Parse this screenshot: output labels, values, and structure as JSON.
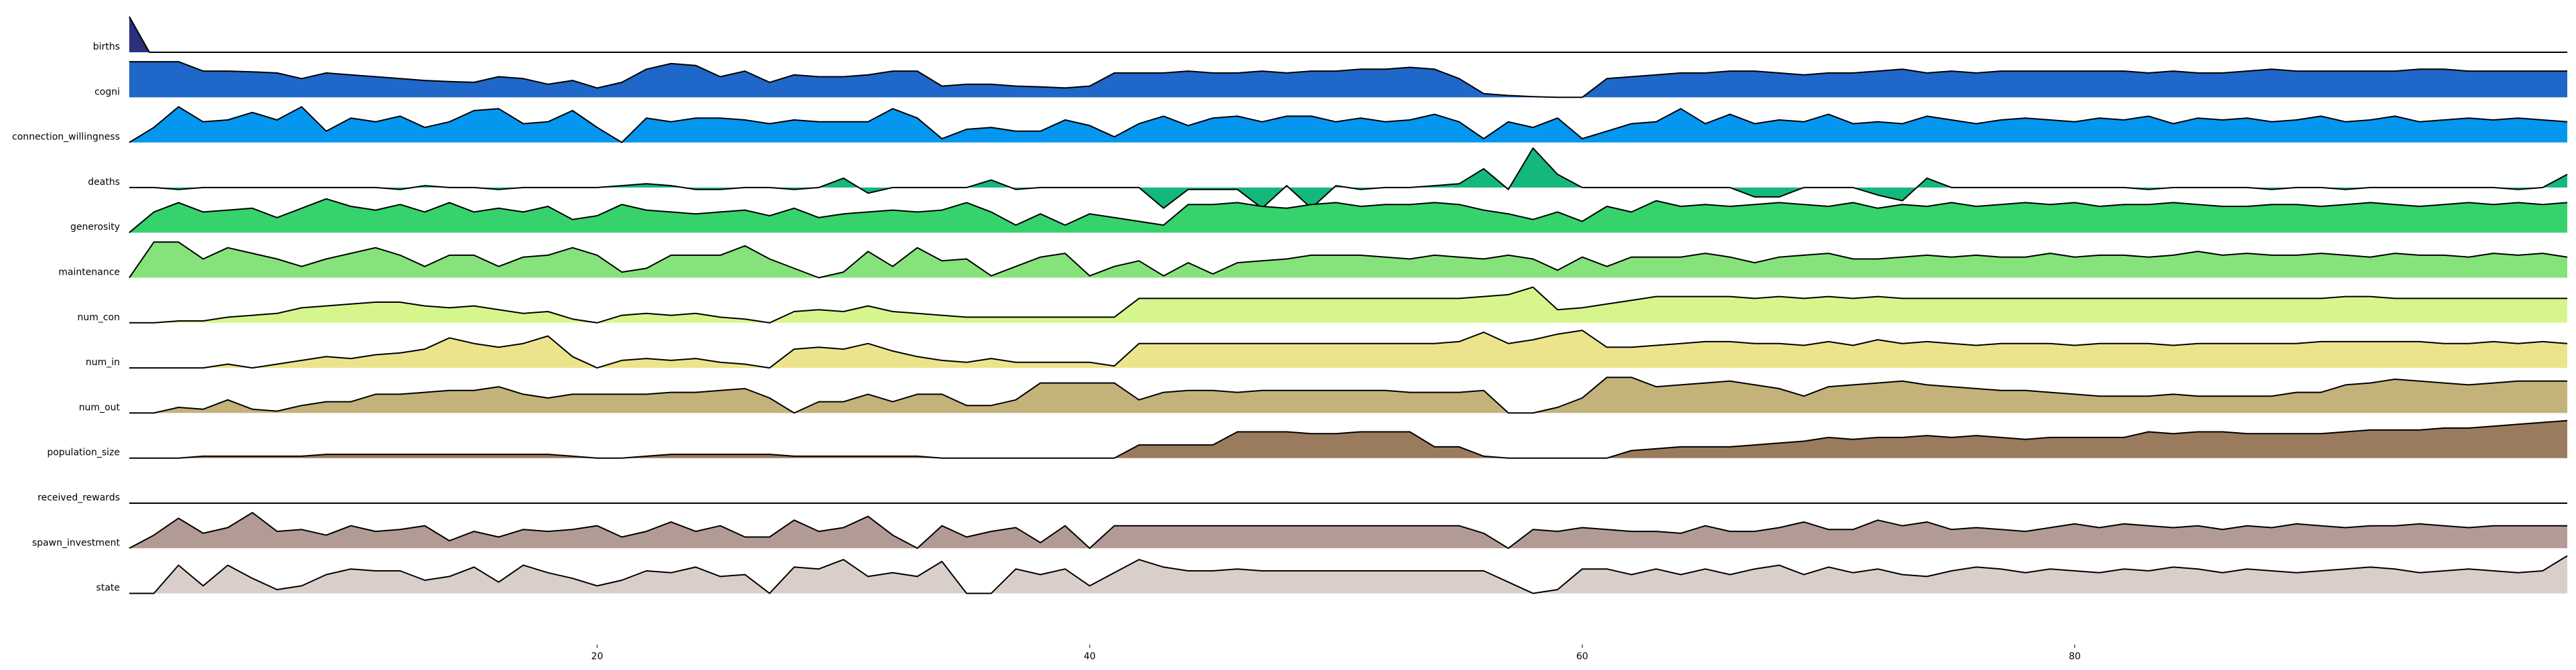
{
  "chart_data": {
    "type": "ridgeline",
    "x_start": 1,
    "x_end": 100,
    "xlim": [
      1,
      100
    ],
    "x_ticks": [
      20,
      40,
      60,
      80
    ],
    "x_tick_labels": [
      "20",
      "40",
      "60",
      "80"
    ],
    "grid": false,
    "legend": "none",
    "series": [
      {
        "name": "births",
        "color": "#2b2f7e",
        "values": [
          1,
          0
        ]
      },
      {
        "name": "cogni",
        "color": "#1f67c8",
        "values": [
          0.95,
          0.95,
          0.95,
          0.7,
          0.7,
          0.68,
          0.65,
          0.5,
          0.65,
          0.6,
          0.55,
          0.5,
          0.45,
          0.42,
          0.4,
          0.55,
          0.5,
          0.35,
          0.45,
          0.25,
          0.4,
          0.75,
          0.9,
          0.85,
          0.55,
          0.7,
          0.4,
          0.6,
          0.55,
          0.55,
          0.6,
          0.7,
          0.7,
          0.3,
          0.35,
          0.35,
          0.3,
          0.28,
          0.25,
          0.3,
          0.65,
          0.65,
          0.65,
          0.7,
          0.65,
          0.65,
          0.7,
          0.65,
          0.7,
          0.7,
          0.75,
          0.75,
          0.8,
          0.75,
          0.5,
          0.1,
          0.05,
          0.02,
          0.0,
          0.0,
          0.5,
          0.55,
          0.6,
          0.65,
          0.65,
          0.7,
          0.7,
          0.65,
          0.6,
          0.65,
          0.65,
          0.7,
          0.75,
          0.65,
          0.7,
          0.65,
          0.7,
          0.7,
          0.7,
          0.7,
          0.7,
          0.7,
          0.65,
          0.7,
          0.65,
          0.65,
          0.7,
          0.75,
          0.7,
          0.7,
          0.7,
          0.7,
          0.7,
          0.75,
          0.75,
          0.7,
          0.7,
          0.7,
          0.7,
          0.7
        ]
      },
      {
        "name": "connection_willingness",
        "color": "#0596f0",
        "values": [
          0.0,
          0.4,
          0.95,
          0.55,
          0.6,
          0.8,
          0.6,
          0.95,
          0.3,
          0.65,
          0.55,
          0.7,
          0.4,
          0.55,
          0.85,
          0.9,
          0.5,
          0.55,
          0.85,
          0.4,
          0.0,
          0.65,
          0.55,
          0.65,
          0.65,
          0.6,
          0.5,
          0.6,
          0.55,
          0.55,
          0.55,
          0.9,
          0.65,
          0.1,
          0.35,
          0.4,
          0.3,
          0.3,
          0.6,
          0.45,
          0.15,
          0.5,
          0.7,
          0.45,
          0.65,
          0.7,
          0.55,
          0.7,
          0.7,
          0.55,
          0.65,
          0.55,
          0.6,
          0.75,
          0.55,
          0.1,
          0.55,
          0.4,
          0.65,
          0.1,
          0.3,
          0.5,
          0.55,
          0.9,
          0.5,
          0.75,
          0.5,
          0.6,
          0.55,
          0.75,
          0.5,
          0.55,
          0.5,
          0.7,
          0.6,
          0.5,
          0.6,
          0.65,
          0.6,
          0.55,
          0.65,
          0.6,
          0.7,
          0.5,
          0.65,
          0.6,
          0.65,
          0.55,
          0.6,
          0.7,
          0.55,
          0.6,
          0.7,
          0.55,
          0.6,
          0.65,
          0.6,
          0.65,
          0.6,
          0.55
        ]
      },
      {
        "name": "deaths",
        "color": "#14b87b",
        "values": [
          0.0,
          0.0,
          -0.05,
          0.0,
          0.0,
          0.0,
          0.0,
          0.0,
          0.0,
          0.0,
          0.0,
          -0.05,
          0.05,
          0.0,
          0.0,
          -0.05,
          0.0,
          0.0,
          0.0,
          0.0,
          0.05,
          0.1,
          0.05,
          -0.05,
          -0.05,
          0.0,
          0.0,
          -0.05,
          0.0,
          0.25,
          -0.15,
          0.0,
          0.0,
          0.0,
          0.0,
          0.2,
          -0.05,
          0.0,
          0.0,
          0.0,
          0.0,
          0.0,
          -0.55,
          -0.05,
          -0.05,
          -0.05,
          -0.55,
          0.05,
          -0.55,
          0.05,
          -0.05,
          0.0,
          0.0,
          0.05,
          0.1,
          0.5,
          -0.05,
          1.05,
          0.35,
          0.0,
          0.0,
          0.0,
          0.0,
          0.0,
          0.0,
          0.0,
          -0.25,
          -0.25,
          0.0,
          0.0,
          0.0,
          -0.2,
          -0.35,
          0.25,
          0.0,
          0.0,
          0.0,
          0.0,
          0.0,
          0.0,
          0.0,
          0.0,
          -0.05,
          0.0,
          0.0,
          0.0,
          0.0,
          -0.05,
          0.0,
          0.0,
          -0.05,
          0.0,
          0.0,
          0.0,
          0.0,
          0.0,
          0.0,
          -0.05,
          0.0,
          0.35
        ]
      },
      {
        "name": "generosity",
        "color": "#36d26c",
        "values": [
          0.0,
          0.55,
          0.8,
          0.55,
          0.6,
          0.65,
          0.4,
          0.65,
          0.9,
          0.7,
          0.6,
          0.75,
          0.55,
          0.8,
          0.55,
          0.65,
          0.55,
          0.7,
          0.35,
          0.45,
          0.75,
          0.6,
          0.55,
          0.5,
          0.55,
          0.6,
          0.45,
          0.65,
          0.4,
          0.5,
          0.55,
          0.6,
          0.55,
          0.6,
          0.8,
          0.55,
          0.2,
          0.5,
          0.2,
          0.5,
          0.4,
          0.3,
          0.2,
          0.75,
          0.75,
          0.8,
          0.7,
          0.65,
          0.75,
          0.8,
          0.7,
          0.75,
          0.75,
          0.8,
          0.75,
          0.6,
          0.5,
          0.35,
          0.55,
          0.3,
          0.7,
          0.55,
          0.85,
          0.7,
          0.75,
          0.7,
          0.75,
          0.8,
          0.75,
          0.7,
          0.8,
          0.65,
          0.75,
          0.7,
          0.8,
          0.7,
          0.75,
          0.8,
          0.75,
          0.8,
          0.7,
          0.75,
          0.75,
          0.8,
          0.75,
          0.7,
          0.7,
          0.75,
          0.75,
          0.7,
          0.75,
          0.8,
          0.75,
          0.7,
          0.75,
          0.8,
          0.75,
          0.8,
          0.75,
          0.8
        ]
      },
      {
        "name": "maintenance",
        "color": "#86e37b",
        "values": [
          0.0,
          0.95,
          0.95,
          0.5,
          0.8,
          0.65,
          0.5,
          0.3,
          0.5,
          0.65,
          0.8,
          0.6,
          0.3,
          0.6,
          0.6,
          0.3,
          0.55,
          0.6,
          0.8,
          0.6,
          0.15,
          0.25,
          0.6,
          0.6,
          0.6,
          0.85,
          0.5,
          0.25,
          0.0,
          0.15,
          0.7,
          0.3,
          0.8,
          0.45,
          0.5,
          0.05,
          0.3,
          0.55,
          0.65,
          0.05,
          0.3,
          0.45,
          0.05,
          0.4,
          0.1,
          0.4,
          0.45,
          0.5,
          0.6,
          0.6,
          0.6,
          0.55,
          0.5,
          0.6,
          0.55,
          0.5,
          0.6,
          0.5,
          0.2,
          0.55,
          0.3,
          0.55,
          0.55,
          0.55,
          0.65,
          0.55,
          0.4,
          0.55,
          0.6,
          0.65,
          0.5,
          0.5,
          0.55,
          0.6,
          0.55,
          0.6,
          0.55,
          0.55,
          0.65,
          0.55,
          0.6,
          0.6,
          0.55,
          0.6,
          0.7,
          0.6,
          0.65,
          0.6,
          0.6,
          0.65,
          0.6,
          0.55,
          0.65,
          0.6,
          0.6,
          0.55,
          0.65,
          0.6,
          0.65,
          0.55
        ]
      },
      {
        "name": "num_con",
        "color": "#d6f68d",
        "values": [
          0.0,
          0.0,
          0.05,
          0.05,
          0.15,
          0.2,
          0.25,
          0.4,
          0.45,
          0.5,
          0.55,
          0.55,
          0.45,
          0.4,
          0.45,
          0.35,
          0.25,
          0.3,
          0.1,
          0.0,
          0.2,
          0.25,
          0.2,
          0.25,
          0.15,
          0.1,
          0.0,
          0.3,
          0.35,
          0.3,
          0.45,
          0.3,
          0.25,
          0.2,
          0.15,
          0.15,
          0.15,
          0.15,
          0.15,
          0.15,
          0.15,
          0.65,
          0.65,
          0.65,
          0.65,
          0.65,
          0.65,
          0.65,
          0.65,
          0.65,
          0.65,
          0.65,
          0.65,
          0.65,
          0.65,
          0.7,
          0.75,
          0.95,
          0.35,
          0.4,
          0.5,
          0.6,
          0.7,
          0.7,
          0.7,
          0.7,
          0.65,
          0.7,
          0.65,
          0.7,
          0.65,
          0.7,
          0.65,
          0.65,
          0.65,
          0.65,
          0.65,
          0.65,
          0.65,
          0.65,
          0.65,
          0.65,
          0.65,
          0.65,
          0.65,
          0.65,
          0.65,
          0.65,
          0.65,
          0.65,
          0.7,
          0.7,
          0.65,
          0.65,
          0.65,
          0.65,
          0.65,
          0.65,
          0.65,
          0.65
        ]
      },
      {
        "name": "num_in",
        "color": "#ece48d",
        "values": [
          0.0,
          0.0,
          0.0,
          0.0,
          0.1,
          0.0,
          0.1,
          0.2,
          0.3,
          0.25,
          0.35,
          0.4,
          0.5,
          0.8,
          0.65,
          0.55,
          0.65,
          0.85,
          0.3,
          0.0,
          0.2,
          0.25,
          0.2,
          0.25,
          0.15,
          0.1,
          0.0,
          0.5,
          0.55,
          0.5,
          0.65,
          0.45,
          0.3,
          0.2,
          0.15,
          0.25,
          0.15,
          0.15,
          0.15,
          0.15,
          0.05,
          0.65,
          0.65,
          0.65,
          0.65,
          0.65,
          0.65,
          0.65,
          0.65,
          0.65,
          0.65,
          0.65,
          0.65,
          0.65,
          0.7,
          0.95,
          0.65,
          0.75,
          0.9,
          1.0,
          0.55,
          0.55,
          0.6,
          0.65,
          0.7,
          0.7,
          0.65,
          0.65,
          0.6,
          0.7,
          0.6,
          0.75,
          0.65,
          0.7,
          0.65,
          0.6,
          0.65,
          0.65,
          0.65,
          0.6,
          0.65,
          0.65,
          0.65,
          0.6,
          0.65,
          0.65,
          0.65,
          0.65,
          0.65,
          0.7,
          0.7,
          0.7,
          0.7,
          0.7,
          0.65,
          0.65,
          0.7,
          0.65,
          0.7,
          0.65
        ]
      },
      {
        "name": "num_out",
        "color": "#c4b27b",
        "values": [
          0.0,
          0.0,
          0.15,
          0.1,
          0.35,
          0.1,
          0.05,
          0.2,
          0.3,
          0.3,
          0.5,
          0.5,
          0.55,
          0.6,
          0.6,
          0.7,
          0.5,
          0.4,
          0.5,
          0.5,
          0.5,
          0.5,
          0.55,
          0.55,
          0.6,
          0.65,
          0.4,
          0.0,
          0.3,
          0.3,
          0.5,
          0.3,
          0.5,
          0.5,
          0.2,
          0.2,
          0.35,
          0.8,
          0.8,
          0.8,
          0.8,
          0.35,
          0.55,
          0.6,
          0.6,
          0.55,
          0.6,
          0.6,
          0.6,
          0.6,
          0.6,
          0.6,
          0.55,
          0.55,
          0.55,
          0.6,
          0.0,
          0.0,
          0.15,
          0.4,
          0.95,
          0.95,
          0.7,
          0.75,
          0.8,
          0.85,
          0.75,
          0.65,
          0.45,
          0.7,
          0.75,
          0.8,
          0.85,
          0.75,
          0.7,
          0.65,
          0.6,
          0.6,
          0.55,
          0.5,
          0.45,
          0.45,
          0.45,
          0.5,
          0.45,
          0.45,
          0.45,
          0.45,
          0.55,
          0.55,
          0.75,
          0.8,
          0.9,
          0.85,
          0.8,
          0.75,
          0.8,
          0.85,
          0.85,
          0.85
        ]
      },
      {
        "name": "population_size",
        "color": "#9b7b5d",
        "values": [
          0.0,
          0.0,
          0.0,
          0.05,
          0.05,
          0.05,
          0.05,
          0.05,
          0.1,
          0.1,
          0.1,
          0.1,
          0.1,
          0.1,
          0.1,
          0.1,
          0.1,
          0.1,
          0.05,
          0.0,
          0.0,
          0.05,
          0.1,
          0.1,
          0.1,
          0.1,
          0.1,
          0.05,
          0.05,
          0.05,
          0.05,
          0.05,
          0.05,
          0.0,
          0.0,
          0.0,
          0.0,
          0.0,
          0.0,
          0.0,
          0.0,
          0.35,
          0.35,
          0.35,
          0.35,
          0.7,
          0.7,
          0.7,
          0.65,
          0.65,
          0.7,
          0.7,
          0.7,
          0.3,
          0.3,
          0.05,
          0.0,
          0.0,
          0.0,
          0.0,
          0.0,
          0.2,
          0.25,
          0.3,
          0.3,
          0.3,
          0.35,
          0.4,
          0.45,
          0.55,
          0.5,
          0.55,
          0.55,
          0.6,
          0.55,
          0.6,
          0.55,
          0.5,
          0.55,
          0.55,
          0.55,
          0.55,
          0.7,
          0.65,
          0.7,
          0.7,
          0.65,
          0.65,
          0.65,
          0.65,
          0.7,
          0.75,
          0.75,
          0.75,
          0.8,
          0.8,
          0.85,
          0.9,
          0.95,
          1.0
        ]
      },
      {
        "name": "received_rewards",
        "color": "#cfbba6",
        "values": [
          0.0,
          0.0
        ]
      },
      {
        "name": "spawn_investment",
        "color": "#b39b95",
        "values": [
          0.0,
          0.35,
          0.8,
          0.4,
          0.55,
          0.95,
          0.45,
          0.5,
          0.35,
          0.6,
          0.45,
          0.5,
          0.6,
          0.2,
          0.45,
          0.3,
          0.5,
          0.45,
          0.5,
          0.6,
          0.3,
          0.45,
          0.7,
          0.45,
          0.6,
          0.3,
          0.3,
          0.75,
          0.45,
          0.55,
          0.85,
          0.35,
          0.0,
          0.6,
          0.3,
          0.45,
          0.55,
          0.15,
          0.6,
          0.0,
          0.6,
          0.6,
          0.6,
          0.6,
          0.6,
          0.6,
          0.6,
          0.6,
          0.6,
          0.6,
          0.6,
          0.6,
          0.6,
          0.6,
          0.6,
          0.4,
          0.0,
          0.5,
          0.45,
          0.55,
          0.5,
          0.45,
          0.45,
          0.4,
          0.6,
          0.45,
          0.45,
          0.55,
          0.7,
          0.5,
          0.5,
          0.75,
          0.6,
          0.7,
          0.5,
          0.55,
          0.5,
          0.45,
          0.55,
          0.65,
          0.55,
          0.65,
          0.6,
          0.55,
          0.6,
          0.5,
          0.6,
          0.55,
          0.65,
          0.6,
          0.55,
          0.6,
          0.6,
          0.65,
          0.6,
          0.55,
          0.6,
          0.6,
          0.6,
          0.6
        ]
      },
      {
        "name": "state",
        "color": "#d9ceca",
        "values": [
          0.0,
          0.0,
          0.75,
          0.2,
          0.75,
          0.4,
          0.1,
          0.2,
          0.5,
          0.65,
          0.6,
          0.6,
          0.35,
          0.45,
          0.7,
          0.3,
          0.75,
          0.55,
          0.4,
          0.2,
          0.35,
          0.6,
          0.55,
          0.7,
          0.45,
          0.5,
          0.0,
          0.7,
          0.65,
          0.9,
          0.45,
          0.55,
          0.45,
          0.85,
          0.0,
          0.0,
          0.65,
          0.5,
          0.65,
          0.2,
          0.55,
          0.9,
          0.7,
          0.6,
          0.6,
          0.65,
          0.6,
          0.6,
          0.6,
          0.6,
          0.6,
          0.6,
          0.6,
          0.6,
          0.6,
          0.6,
          0.3,
          0.0,
          0.1,
          0.65,
          0.65,
          0.5,
          0.65,
          0.5,
          0.65,
          0.5,
          0.65,
          0.75,
          0.5,
          0.7,
          0.55,
          0.65,
          0.5,
          0.45,
          0.6,
          0.7,
          0.65,
          0.55,
          0.65,
          0.6,
          0.55,
          0.65,
          0.6,
          0.7,
          0.65,
          0.55,
          0.65,
          0.6,
          0.55,
          0.6,
          0.65,
          0.7,
          0.65,
          0.55,
          0.6,
          0.65,
          0.6,
          0.55,
          0.6,
          1.0
        ]
      }
    ]
  }
}
